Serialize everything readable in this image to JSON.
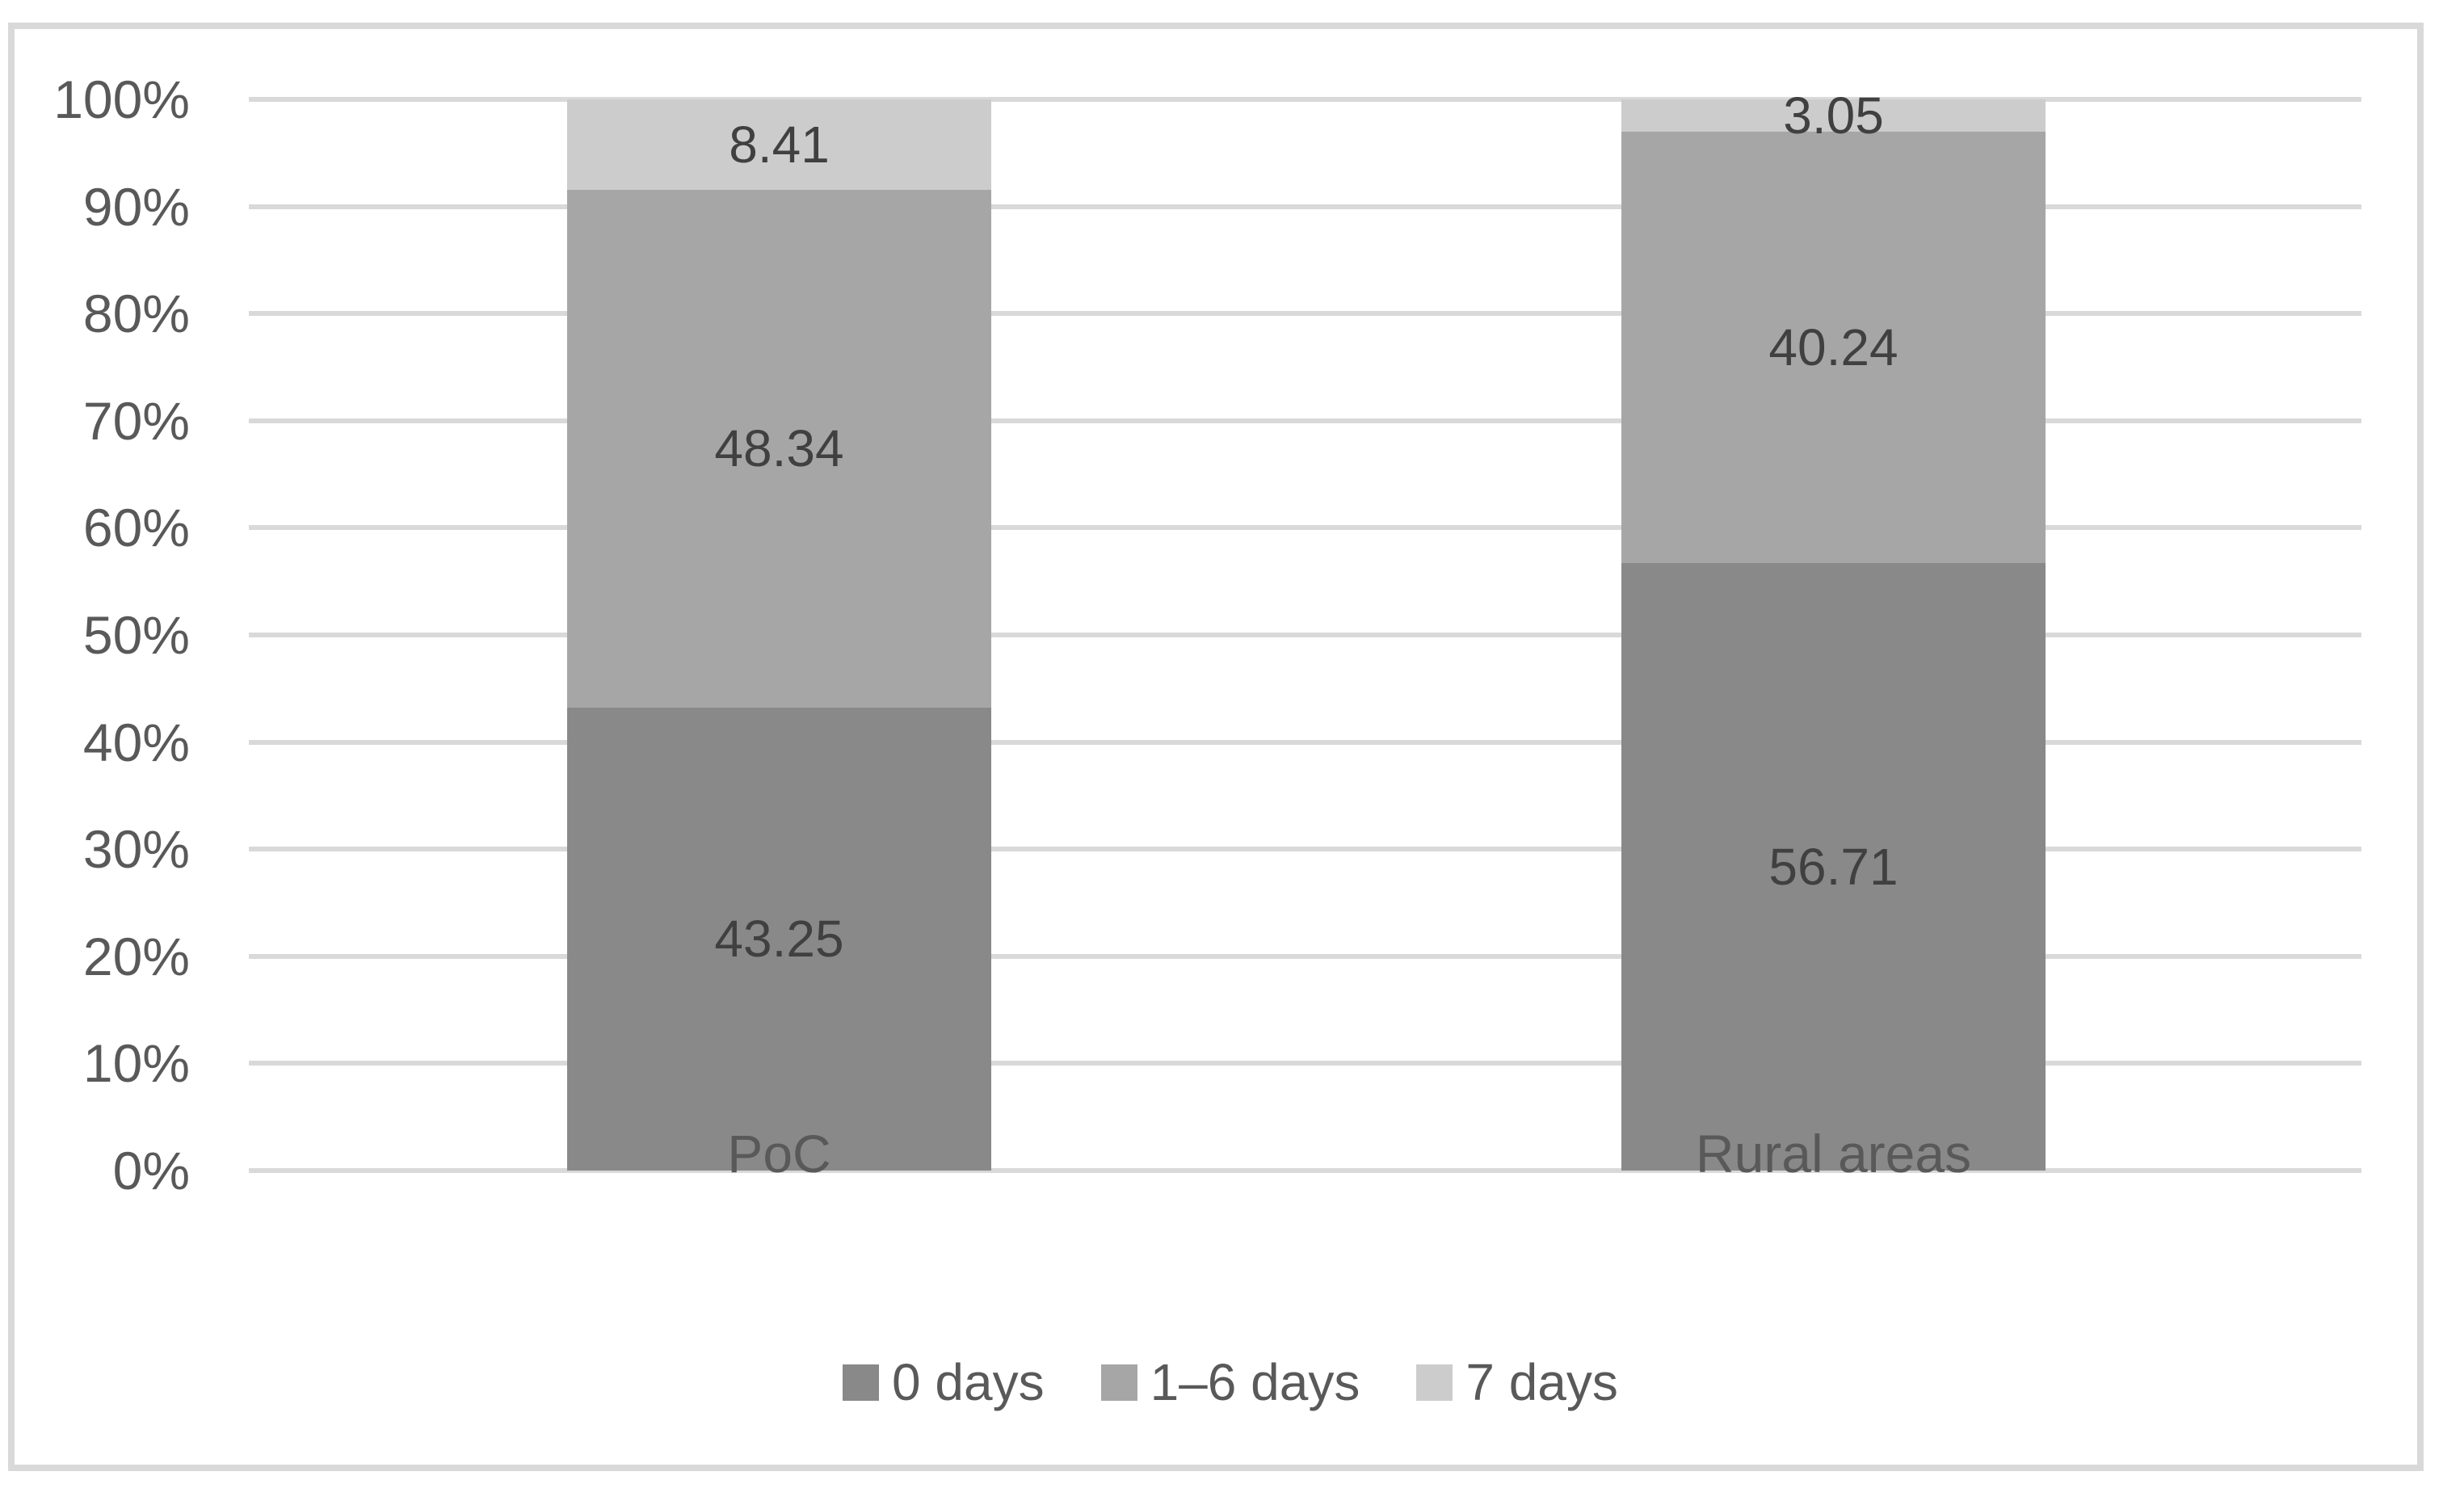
{
  "figure": {
    "title": "",
    "background_color": "#FFFFFF",
    "border_color": "#D9D9D9",
    "gridline_color": "#D9D9D9",
    "axis_text_color": "#595959",
    "data_label_color": "#404040"
  },
  "chart_data": {
    "type": "bar",
    "subtype": "stacked-100-percent",
    "title": "",
    "xlabel": "",
    "ylabel": "",
    "categories": [
      "PoC",
      "Rural areas"
    ],
    "series": [
      {
        "name": "0 days",
        "color": "#898989",
        "values": [
          43.25,
          56.71
        ]
      },
      {
        "name": "1–6 days",
        "color": "#A6A6A6",
        "values": [
          48.34,
          40.24
        ]
      },
      {
        "name": "7 days",
        "color": "#CCCCCC",
        "values": [
          8.41,
          3.05
        ]
      }
    ],
    "data_labels": [
      [
        "43.25",
        "56.71"
      ],
      [
        "48.34",
        "40.24"
      ],
      [
        "8.41",
        "3.05"
      ]
    ],
    "y_axis": {
      "min": 0,
      "max": 100,
      "step": 10,
      "tick_labels": [
        "0%",
        "10%",
        "20%",
        "30%",
        "40%",
        "50%",
        "60%",
        "70%",
        "80%",
        "90%",
        "100%"
      ]
    },
    "grid": true,
    "legend_position": "bottom",
    "legend_items": [
      "0 days",
      "1–6 days",
      "7 days"
    ]
  }
}
